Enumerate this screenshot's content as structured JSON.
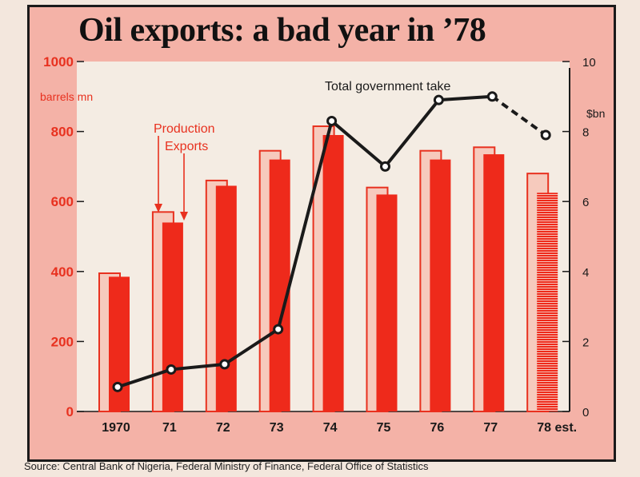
{
  "chart_data": {
    "type": "bar",
    "title": "Oil exports: a bad year in ’78",
    "categories": [
      "1970",
      "71",
      "72",
      "73",
      "74",
      "75",
      "76",
      "77",
      "78 est."
    ],
    "left_axis": {
      "unit_label": "barrels mn",
      "ylim": [
        0,
        1000
      ],
      "ticks": [
        0,
        200,
        400,
        600,
        800,
        1000
      ]
    },
    "right_axis": {
      "unit_label": "$bn",
      "ylim": [
        0,
        10
      ],
      "ticks": [
        0,
        2,
        4,
        6,
        8,
        10
      ]
    },
    "series": [
      {
        "name": "Production",
        "kind": "bar",
        "axis": "left",
        "values": [
          395,
          570,
          660,
          745,
          815,
          640,
          745,
          755,
          680
        ],
        "color": "#f6cabd",
        "edge": "#e8311f"
      },
      {
        "name": "Exports",
        "kind": "bar",
        "axis": "left",
        "values": [
          385,
          540,
          645,
          720,
          790,
          620,
          720,
          735,
          625
        ],
        "color": "#ee2a1b",
        "estimated_last": true
      },
      {
        "name": "Total government take",
        "kind": "line",
        "axis": "right",
        "values": [
          0.7,
          1.2,
          1.35,
          2.35,
          8.3,
          7.0,
          8.9,
          9.0,
          7.9
        ],
        "color": "#1a1a1a",
        "estimated_last": true
      }
    ],
    "annotations": [
      "Production",
      "Exports",
      "Total government take"
    ]
  },
  "source": "Source: Central Bank of Nigeria, Federal Ministry of Finance, Federal Office of Statistics",
  "colors": {
    "background": "#f4b2a7",
    "plot": "#f4ece3",
    "accent_red": "#e8311f",
    "ink": "#1a1a1a"
  }
}
